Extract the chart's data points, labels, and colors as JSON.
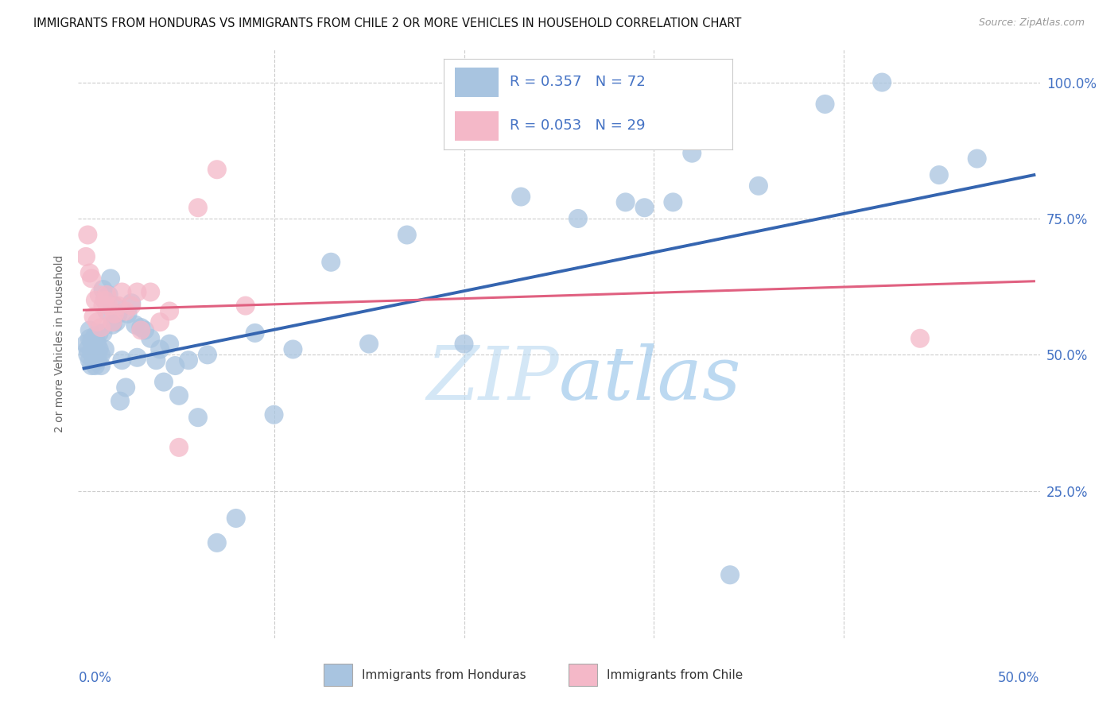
{
  "title": "IMMIGRANTS FROM HONDURAS VS IMMIGRANTS FROM CHILE 2 OR MORE VEHICLES IN HOUSEHOLD CORRELATION CHART",
  "source": "Source: ZipAtlas.com",
  "ylabel": "2 or more Vehicles in Household",
  "honduras_color": "#a8c4e0",
  "chile_color": "#f4b8c8",
  "honduras_line_color": "#3565b0",
  "chile_line_color": "#e06080",
  "watermark_color": "#d0e8f8",
  "honduras_R": 0.357,
  "honduras_N": 72,
  "chile_R": 0.053,
  "chile_N": 29,
  "legend_bottom1": "Immigrants from Honduras",
  "legend_bottom2": "Immigrants from Chile",
  "xlim": [
    0.0,
    0.5
  ],
  "ylim": [
    0.0,
    1.0
  ],
  "x_ticks": [
    0.0,
    0.1,
    0.2,
    0.3,
    0.4,
    0.5
  ],
  "y_ticks": [
    0.0,
    0.25,
    0.5,
    0.75,
    1.0
  ],
  "y_tick_labels": [
    "",
    "25.0%",
    "50.0%",
    "75.0%",
    "100.0%"
  ],
  "honduras_x": [
    0.001,
    0.002,
    0.002,
    0.003,
    0.003,
    0.003,
    0.004,
    0.004,
    0.004,
    0.005,
    0.005,
    0.005,
    0.006,
    0.006,
    0.007,
    0.007,
    0.007,
    0.008,
    0.008,
    0.009,
    0.009,
    0.01,
    0.01,
    0.011,
    0.011,
    0.012,
    0.013,
    0.014,
    0.015,
    0.016,
    0.017,
    0.018,
    0.019,
    0.02,
    0.022,
    0.023,
    0.025,
    0.027,
    0.028,
    0.03,
    0.032,
    0.035,
    0.038,
    0.04,
    0.042,
    0.045,
    0.048,
    0.05,
    0.055,
    0.06,
    0.065,
    0.07,
    0.08,
    0.09,
    0.1,
    0.11,
    0.13,
    0.15,
    0.17,
    0.2,
    0.23,
    0.26,
    0.295,
    0.32,
    0.355,
    0.39,
    0.42,
    0.45,
    0.47,
    0.285,
    0.31,
    0.34
  ],
  "honduras_y": [
    0.52,
    0.51,
    0.5,
    0.53,
    0.49,
    0.545,
    0.505,
    0.48,
    0.525,
    0.5,
    0.49,
    0.515,
    0.535,
    0.48,
    0.5,
    0.52,
    0.49,
    0.51,
    0.54,
    0.5,
    0.48,
    0.62,
    0.54,
    0.51,
    0.6,
    0.58,
    0.61,
    0.64,
    0.555,
    0.59,
    0.56,
    0.575,
    0.415,
    0.49,
    0.44,
    0.575,
    0.595,
    0.555,
    0.495,
    0.55,
    0.545,
    0.53,
    0.49,
    0.51,
    0.45,
    0.52,
    0.48,
    0.425,
    0.49,
    0.385,
    0.5,
    0.155,
    0.2,
    0.54,
    0.39,
    0.51,
    0.67,
    0.52,
    0.72,
    0.52,
    0.79,
    0.75,
    0.77,
    0.87,
    0.81,
    0.96,
    1.0,
    0.83,
    0.86,
    0.78,
    0.78,
    0.096
  ],
  "chile_x": [
    0.001,
    0.002,
    0.003,
    0.004,
    0.005,
    0.006,
    0.007,
    0.008,
    0.009,
    0.01,
    0.011,
    0.012,
    0.013,
    0.015,
    0.016,
    0.018,
    0.02,
    0.022,
    0.025,
    0.028,
    0.03,
    0.035,
    0.04,
    0.045,
    0.05,
    0.06,
    0.07,
    0.085,
    0.44
  ],
  "chile_y": [
    0.68,
    0.72,
    0.65,
    0.64,
    0.57,
    0.6,
    0.56,
    0.61,
    0.55,
    0.59,
    0.6,
    0.61,
    0.59,
    0.56,
    0.575,
    0.59,
    0.615,
    0.58,
    0.59,
    0.615,
    0.545,
    0.615,
    0.56,
    0.58,
    0.33,
    0.77,
    0.84,
    0.59,
    0.53
  ]
}
